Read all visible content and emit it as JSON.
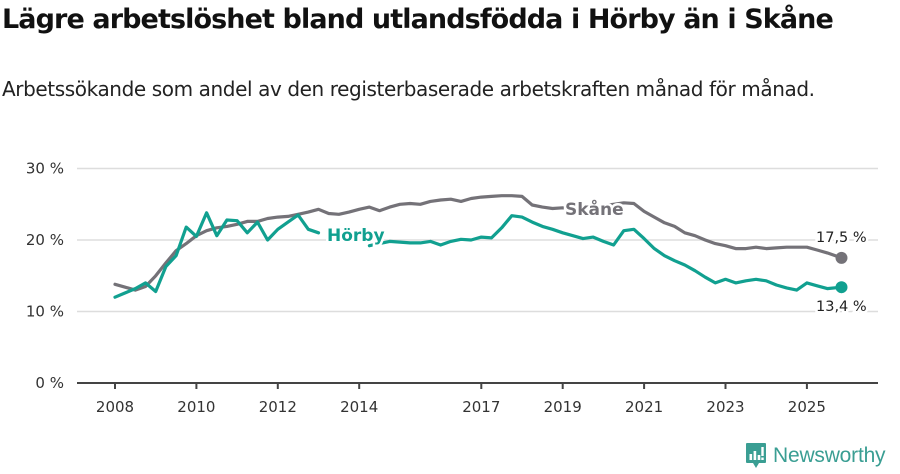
{
  "header": {
    "title": "Lägre arbetslöshet bland utlandsfödda i Hörby än i Skåne",
    "subtitle": "Arbetssökande som andel av den registerbaserade arbetskraften månad för månad."
  },
  "branding": {
    "name": "Newsworthy",
    "color": "#3a9e93",
    "icon": "newsworthy-logo-icon"
  },
  "colors": {
    "horby": "#11a090",
    "skane": "#747278",
    "grid": "#dddddd",
    "axis": "#444444"
  },
  "chart_data": {
    "type": "line",
    "title": "Lägre arbetslöshet bland utlandsfödda i Hörby än i Skåne",
    "subtitle": "Arbetssökande som andel av den registerbaserade arbetskraften månad för månad.",
    "xlabel": "",
    "ylabel": "",
    "ylim": [
      0,
      30
    ],
    "yticks": [
      0,
      10,
      20,
      30
    ],
    "ytick_labels": [
      "0 %",
      "10 %",
      "20 %",
      "30 %"
    ],
    "xticks": [
      2008,
      2010,
      2012,
      2014,
      2017,
      2019,
      2021,
      2023,
      2025
    ],
    "xtick_labels": [
      "2008",
      "2010",
      "2012",
      "2014",
      "2017",
      "2019",
      "2021",
      "2023",
      "2025"
    ],
    "xlim": [
      2007.1,
      2026.6
    ],
    "grid": "horizontal",
    "legend": "inline labels",
    "annotations": [
      {
        "text": "Hörby",
        "series": "Hörby"
      },
      {
        "text": "Skåne",
        "series": "Skåne"
      },
      {
        "text": "17,5 %",
        "series": "Skåne",
        "position": "end"
      },
      {
        "text": "13,4 %",
        "series": "Hörby",
        "position": "end"
      }
    ],
    "x": [
      2008.0,
      2008.25,
      2008.5,
      2008.75,
      2009.0,
      2009.25,
      2009.5,
      2009.75,
      2010.0,
      2010.25,
      2010.5,
      2010.75,
      2011.0,
      2011.25,
      2011.5,
      2011.75,
      2012.0,
      2012.25,
      2012.5,
      2012.75,
      2013.0,
      2013.25,
      2013.5,
      2013.75,
      2014.0,
      2014.25,
      2014.5,
      2014.75,
      2015.0,
      2015.25,
      2015.5,
      2015.75,
      2016.0,
      2016.25,
      2016.5,
      2016.75,
      2017.0,
      2017.25,
      2017.5,
      2017.75,
      2018.0,
      2018.25,
      2018.5,
      2018.75,
      2019.0,
      2019.25,
      2019.5,
      2019.75,
      2020.0,
      2020.25,
      2020.5,
      2020.75,
      2021.0,
      2021.25,
      2021.5,
      2021.75,
      2022.0,
      2022.25,
      2022.5,
      2022.75,
      2023.0,
      2023.25,
      2023.5,
      2023.75,
      2024.0,
      2024.25,
      2024.5,
      2024.75,
      2025.0,
      2025.25,
      2025.5,
      2025.85
    ],
    "series": [
      {
        "name": "Skåne",
        "color": "#747278",
        "values": [
          13.8,
          13.4,
          13.0,
          13.5,
          15.0,
          16.8,
          18.5,
          19.5,
          20.6,
          21.3,
          21.7,
          21.9,
          22.2,
          22.6,
          22.6,
          23.0,
          23.2,
          23.3,
          23.6,
          23.9,
          24.3,
          23.7,
          23.6,
          23.9,
          24.3,
          24.6,
          24.1,
          24.6,
          25.0,
          25.1,
          25.0,
          25.4,
          25.6,
          25.7,
          25.4,
          25.8,
          26.0,
          26.1,
          26.2,
          26.2,
          26.1,
          24.9,
          24.6,
          24.4,
          24.5,
          24.3,
          24.3,
          24.6,
          24.8,
          25.0,
          25.2,
          25.1,
          24.0,
          23.2,
          22.4,
          21.9,
          21.0,
          20.6,
          20.0,
          19.5,
          19.2,
          18.8,
          18.8,
          19.0,
          18.8,
          18.9,
          19.0,
          19.0,
          19.0,
          18.6,
          18.2,
          17.5
        ]
      },
      {
        "name": "Hörby",
        "color": "#11a090",
        "values": [
          12.0,
          12.6,
          13.2,
          14.0,
          12.8,
          16.3,
          17.8,
          21.8,
          20.5,
          23.8,
          20.6,
          22.8,
          22.7,
          21.0,
          22.5,
          20.0,
          21.5,
          22.5,
          23.5,
          21.5,
          21.0,
          null,
          null,
          null,
          null,
          19.2,
          19.5,
          19.8,
          19.7,
          19.6,
          19.6,
          19.8,
          19.3,
          19.8,
          20.1,
          20.0,
          20.4,
          20.3,
          21.7,
          23.4,
          23.2,
          22.5,
          21.9,
          21.5,
          21.0,
          20.6,
          20.2,
          20.4,
          19.8,
          19.3,
          21.3,
          21.5,
          20.2,
          18.8,
          17.8,
          17.1,
          16.5,
          15.7,
          14.8,
          14.0,
          14.5,
          14.0,
          14.3,
          14.5,
          14.3,
          13.7,
          13.3,
          13.0,
          14.0,
          13.6,
          13.2,
          13.4
        ]
      }
    ],
    "end_values": {
      "Skåne": "17,5 %",
      "Hörby": "13,4 %"
    }
  }
}
